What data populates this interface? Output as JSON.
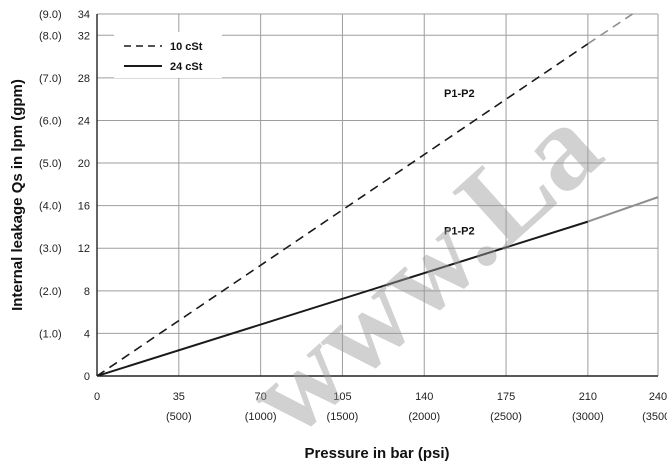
{
  "chart_data": {
    "type": "line",
    "title": "",
    "xlabel": "Pressure in bar (psi)",
    "ylabel": "Internal leakage Qs in lpm (gpm)",
    "xlim": [
      0,
      240
    ],
    "ylim": [
      0,
      34
    ],
    "grid": true,
    "legend_position": "top-left",
    "x_ticks": [
      {
        "value": 0,
        "label": "0",
        "sub": ""
      },
      {
        "value": 35,
        "label": "35",
        "sub": "(500)"
      },
      {
        "value": 70,
        "label": "70",
        "sub": "(1000)"
      },
      {
        "value": 105,
        "label": "105",
        "sub": "(1500)"
      },
      {
        "value": 140,
        "label": "140",
        "sub": "(2000)"
      },
      {
        "value": 175,
        "label": "175",
        "sub": "(2500)"
      },
      {
        "value": 210,
        "label": "210",
        "sub": "(3000)"
      },
      {
        "value": 240,
        "label": "240",
        "sub": "(3500)"
      }
    ],
    "y_ticks": [
      {
        "value": 0,
        "label": "0",
        "alt": ""
      },
      {
        "value": 4,
        "label": "4",
        "alt": "(1.0)"
      },
      {
        "value": 8,
        "label": "8",
        "alt": "(2.0)"
      },
      {
        "value": 12,
        "label": "12",
        "alt": "(3.0)"
      },
      {
        "value": 16,
        "label": "16",
        "alt": "(4.0)"
      },
      {
        "value": 20,
        "label": "20",
        "alt": "(5.0)"
      },
      {
        "value": 24,
        "label": "24",
        "alt": "(6.0)"
      },
      {
        "value": 28,
        "label": "28",
        "alt": "(7.0)"
      },
      {
        "value": 32,
        "label": "32",
        "alt": "(8.0)"
      },
      {
        "value": 34,
        "label": "34",
        "alt": "(9.0)"
      }
    ],
    "series": [
      {
        "name": "10 cSt",
        "style": "dashed",
        "color": "#1a1a1a",
        "x": [
          0,
          210
        ],
        "y": [
          0,
          31.2
        ]
      },
      {
        "name": "24 cSt",
        "style": "solid",
        "color": "#1a1a1a",
        "x": [
          0,
          210
        ],
        "y": [
          0,
          14.5
        ]
      }
    ],
    "extrapolation": [
      {
        "series": "10 cSt",
        "style": "dashed",
        "color": "#8f8f8f",
        "x": [
          210,
          240
        ],
        "y": [
          31.2,
          35.6
        ]
      },
      {
        "series": "24 cSt",
        "style": "solid",
        "color": "#8f8f8f",
        "x": [
          210,
          240
        ],
        "y": [
          14.5,
          16.8
        ]
      }
    ],
    "annotations": [
      {
        "text": "P1-P2",
        "x": 155,
        "y": 26.2
      },
      {
        "text": "P1-P2",
        "x": 155,
        "y": 13.3
      }
    ],
    "watermark": "www.La"
  }
}
